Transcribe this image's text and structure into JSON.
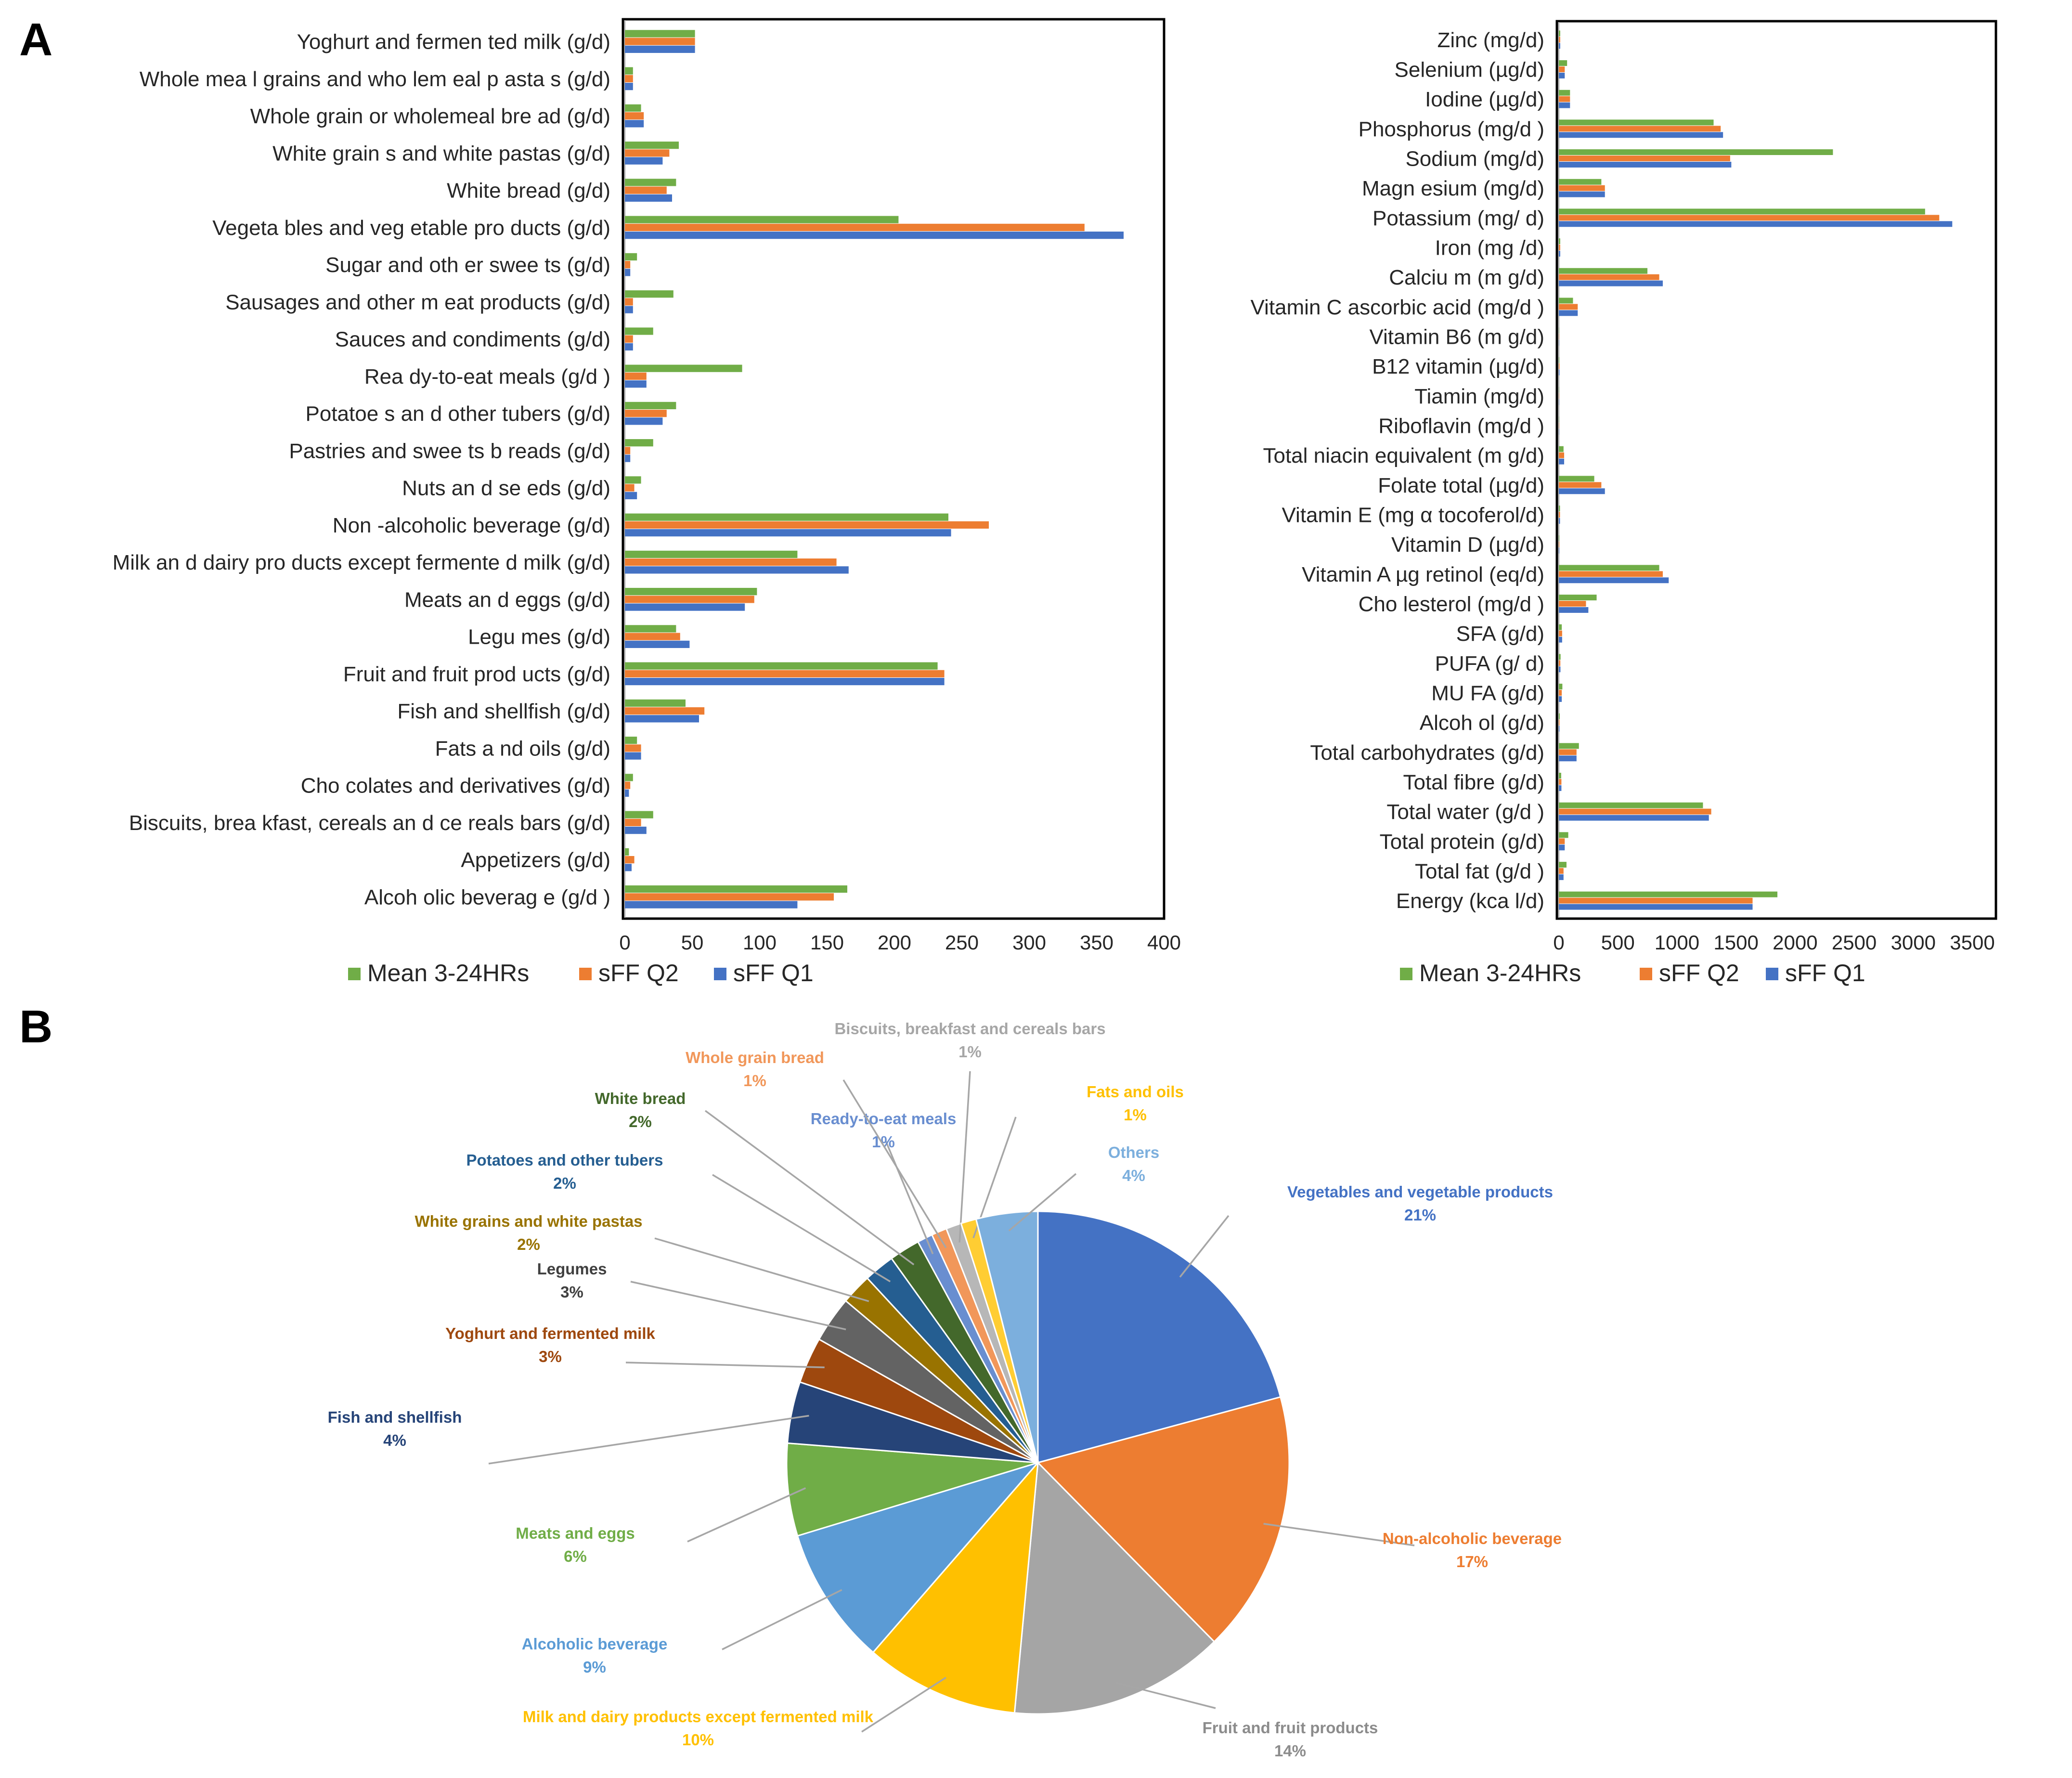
{
  "panels": {
    "a_label": "A",
    "b_label": "B"
  },
  "colors": {
    "mean": "#70ad47",
    "q2": "#ed7d31",
    "q1": "#4472c4"
  },
  "chart_data": [
    {
      "type": "bar",
      "orientation": "horizontal",
      "title": "",
      "categories": [
        "Yoghurt and fermen ted milk (g/d)",
        "Whole mea l grains and who lem eal p asta s (g/d)",
        "Whole grain or wholemeal bre ad (g/d)",
        "White grain s and white pastas (g/d)",
        "White bread (g/d)",
        "Vegeta bles and veg etable pro ducts (g/d)",
        "Sugar and oth er swee ts (g/d)",
        "Sausages and other m eat products (g/d)",
        "Sauces and condiments (g/d)",
        "Rea dy-to-eat meals (g/d )",
        "Potatoe s an d other tubers (g/d)",
        "Pastries and swee ts b reads (g/d)",
        "Nuts an d se eds (g/d)",
        "Non -alcoholic beverage (g/d)",
        "Milk an d dairy pro ducts except fermente d milk (g/d)",
        "Meats an d eggs (g/d)",
        "Legu mes (g/d)",
        "Fruit and fruit prod ucts (g/d)",
        "Fish and shellfish (g/d)",
        "Fats a nd oils (g/d)",
        "Cho colates and derivatives (g/d)",
        "Biscuits, brea kfast, cereals an d ce reals bars (g/d)",
        "Appetizers (g/d)",
        "Alcoh olic beverag e (g/d )"
      ],
      "series": [
        {
          "name": "Mean  3-24HRs",
          "values": [
            52,
            6,
            12,
            40,
            38,
            203,
            9,
            36,
            21,
            87,
            38,
            21,
            12,
            240,
            128,
            98,
            38,
            232,
            45,
            9,
            6,
            21,
            3,
            165
          ]
        },
        {
          "name": "sFF Q2",
          "values": [
            52,
            6,
            14,
            33,
            31,
            341,
            4,
            6,
            6,
            16,
            31,
            4,
            7,
            270,
            157,
            96,
            41,
            237,
            59,
            12,
            4,
            12,
            7,
            155
          ]
        },
        {
          "name": "sFF Q1",
          "values": [
            52,
            6,
            14,
            28,
            35,
            370,
            4,
            6,
            6,
            16,
            28,
            4,
            9,
            242,
            166,
            89,
            48,
            237,
            55,
            12,
            3,
            16,
            5,
            128
          ]
        }
      ],
      "xlim": [
        0,
        400
      ],
      "xticks": [
        "0",
        "50",
        "100",
        "150",
        "200",
        "250",
        "300",
        "350",
        "400"
      ],
      "xlabel": "",
      "ylabel": "",
      "legend_position": "bottom"
    },
    {
      "type": "bar",
      "orientation": "horizontal",
      "title": "",
      "categories": [
        "Zinc (mg/d)",
        "Selenium (µg/d)",
        "Iodine (µg/d)",
        "Phosphorus (mg/d )",
        "Sodium (mg/d)",
        "Magn esium (mg/d)",
        "Potassium (mg/ d)",
        "Iron (mg /d)",
        "Calciu m (m g/d)",
        "Vitamin C ascorbic acid  (mg/d )",
        "Vitamin B6 (m g/d)",
        "B12 vitamin (µg/d)",
        "Tiamin (mg/d)",
        "Riboflavin (mg/d )",
        "Total niacin equivalent (m g/d)",
        "Folate total (µg/d)",
        "Vitamin E (mg α tocoferol/d)",
        "Vitamin D (µg/d)",
        "Vitamin A µg retinol (eq/d)",
        "Cho lesterol (mg/d )",
        "SFA   (g/d)",
        "PUFA (g/ d)",
        "MU FA (g/d)",
        "Alcoh ol (g/d)",
        "Total carbohydrates (g/d)",
        "Total fibre (g/d)",
        "Total water (g/d )",
        "Total protein (g/d)",
        "Total fat (g/d )",
        "Energy (kca l/d)"
      ],
      "series": [
        {
          "name": "Mean  3-24HRs",
          "values": [
            12,
            70,
            95,
            1310,
            2320,
            360,
            3100,
            12,
            750,
            120,
            2,
            4,
            2,
            2,
            40,
            300,
            10,
            4,
            850,
            320,
            25,
            15,
            30,
            8,
            170,
            20,
            1220,
            80,
            65,
            1850
          ]
        },
        {
          "name": "sFF Q2",
          "values": [
            12,
            50,
            95,
            1370,
            1450,
            390,
            3220,
            12,
            850,
            160,
            2,
            6,
            2,
            2,
            45,
            360,
            10,
            4,
            880,
            230,
            28,
            13,
            25,
            6,
            150,
            22,
            1290,
            50,
            40,
            1640
          ]
        },
        {
          "name": "sFF Q1",
          "values": [
            12,
            50,
            95,
            1390,
            1460,
            390,
            3330,
            12,
            880,
            160,
            2,
            6,
            2,
            2,
            45,
            390,
            10,
            4,
            930,
            250,
            28,
            14,
            25,
            6,
            150,
            22,
            1270,
            50,
            40,
            1640
          ]
        }
      ],
      "xlim": [
        0,
        3500
      ],
      "xticks": [
        "0",
        "500",
        "1000",
        "1500",
        "2000",
        "2500",
        "3000",
        "3500"
      ],
      "xlabel": "",
      "ylabel": "",
      "legend_position": "bottom"
    },
    {
      "type": "pie",
      "title": "",
      "slices": [
        {
          "name": "Vegetables and vegetable products",
          "pct": "21%",
          "value": 21,
          "color": "#4472c4",
          "text_color": "#4472c4"
        },
        {
          "name": "Non-alcoholic beverage",
          "pct": "17%",
          "value": 17,
          "color": "#ed7d31",
          "text_color": "#ed7d31"
        },
        {
          "name": "Fruit and fruit products",
          "pct": "14%",
          "value": 14,
          "color": "#a5a5a5",
          "text_color": "#8c8c8c"
        },
        {
          "name": "Milk and dairy products except fermented milk",
          "pct": "10%",
          "value": 10,
          "color": "#ffc000",
          "text_color": "#ffc000"
        },
        {
          "name": "Alcoholic beverage",
          "pct": "9%",
          "value": 9,
          "color": "#5b9bd5",
          "text_color": "#5b9bd5"
        },
        {
          "name": "Meats and eggs",
          "pct": "6%",
          "value": 6,
          "color": "#70ad47",
          "text_color": "#70ad47"
        },
        {
          "name": "Fish and shellfish",
          "pct": "4%",
          "value": 4,
          "color": "#264478",
          "text_color": "#264478"
        },
        {
          "name": "Yoghurt and fermented milk",
          "pct": "3%",
          "value": 3,
          "color": "#9e480e",
          "text_color": "#9e480e"
        },
        {
          "name": "Legumes",
          "pct": "3%",
          "value": 3,
          "color": "#636363",
          "text_color": "#404040"
        },
        {
          "name": "White grains and white pastas",
          "pct": "2%",
          "value": 2,
          "color": "#997300",
          "text_color": "#997300"
        },
        {
          "name": "Potatoes and other tubers",
          "pct": "2%",
          "value": 2,
          "color": "#255e91",
          "text_color": "#255e91"
        },
        {
          "name": "White bread",
          "pct": "2%",
          "value": 2,
          "color": "#43682b",
          "text_color": "#43682b"
        },
        {
          "name": "Ready-to-eat meals",
          "pct": "1%",
          "value": 1,
          "color": "#698ed0",
          "text_color": "#698ed0"
        },
        {
          "name": "Whole grain bread",
          "pct": "1%",
          "value": 1,
          "color": "#f1975a",
          "text_color": "#f1975a"
        },
        {
          "name": "Biscuits, breakfast and cereals bars",
          "pct": "1%",
          "value": 1,
          "color": "#b7b7b7",
          "text_color": "#a6a6a6"
        },
        {
          "name": "Fats and oils",
          "pct": "1%",
          "value": 1,
          "color": "#ffcd33",
          "text_color": "#ffc000"
        },
        {
          "name": "Others",
          "pct": "4%",
          "value": 4,
          "color": "#7cafdd",
          "text_color": "#7cafdd"
        }
      ]
    }
  ]
}
